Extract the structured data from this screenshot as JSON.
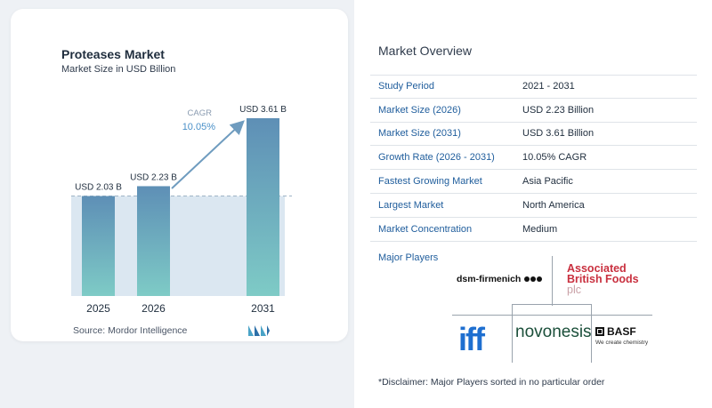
{
  "chart_data": {
    "type": "bar",
    "title": "Proteases Market",
    "subtitle": "Market Size in USD Billion",
    "categories": [
      "2025",
      "2026",
      "2031"
    ],
    "values": [
      2.03,
      2.23,
      3.61
    ],
    "value_labels": [
      "USD 2.03 B",
      "USD 2.23 B",
      "USD 3.61 B"
    ],
    "cagr_label": "CAGR",
    "cagr_value": "10.05%",
    "ylim": [
      0,
      3.61
    ],
    "grid": false,
    "colors": {
      "bar_top": "#5e8fb6",
      "bar_bottom": "#7ecbc6",
      "band": "#dbe7f1",
      "arrow": "#6f9cbf",
      "cagr_text": "#4a90c8"
    }
  },
  "source": "Source:  Mordor Intelligence",
  "logo_icon": "mordor-intelligence-logo-icon",
  "overview": {
    "title": "Market Overview",
    "rows": [
      {
        "key": "Study Period",
        "value": "2021 - 2031"
      },
      {
        "key": "Market Size (2026)",
        "value": "USD 2.23 Billion"
      },
      {
        "key": "Market Size (2031)",
        "value": "USD 3.61 Billion"
      },
      {
        "key": "Growth Rate (2026 - 2031)",
        "value": "10.05% CAGR"
      },
      {
        "key": "Fastest Growing Market",
        "value": "Asia Pacific"
      },
      {
        "key": "Largest Market",
        "value": "North America"
      },
      {
        "key": "Market Concentration",
        "value": "Medium"
      }
    ]
  },
  "major_players": {
    "title": "Major Players",
    "logos": {
      "dsm": "dsm-firmenich",
      "abf": [
        "Associated",
        "British Foods",
        "plc"
      ],
      "iff": "iff",
      "novonesis": "novonesis",
      "basf": "BASF",
      "basf_tagline": "We create chemistry"
    }
  },
  "disclaimer": "*Disclaimer: Major Players sorted in no particular order"
}
